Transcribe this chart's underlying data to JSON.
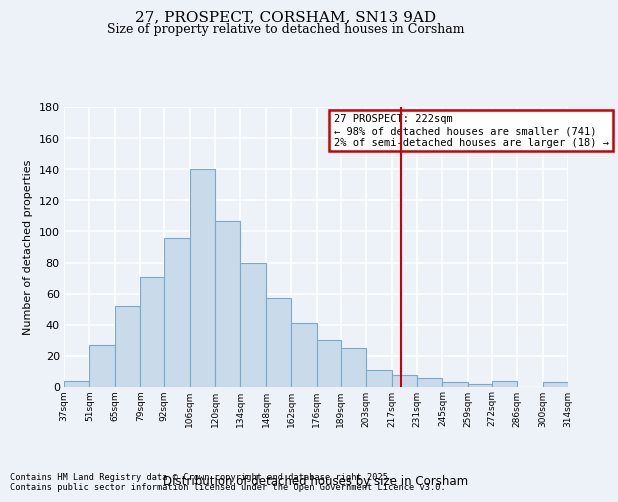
{
  "title": "27, PROSPECT, CORSHAM, SN13 9AD",
  "subtitle": "Size of property relative to detached houses in Corsham",
  "xlabel": "Distribution of detached houses by size in Corsham",
  "ylabel": "Number of detached properties",
  "footer_line1": "Contains HM Land Registry data © Crown copyright and database right 2025.",
  "footer_line2": "Contains public sector information licensed under the Open Government Licence v3.0.",
  "bin_labels": [
    "37sqm",
    "51sqm",
    "65sqm",
    "79sqm",
    "92sqm",
    "106sqm",
    "120sqm",
    "134sqm",
    "148sqm",
    "162sqm",
    "176sqm",
    "189sqm",
    "203sqm",
    "217sqm",
    "231sqm",
    "245sqm",
    "259sqm",
    "272sqm",
    "286sqm",
    "300sqm",
    "314sqm"
  ],
  "bar_values": [
    4,
    27,
    52,
    71,
    96,
    140,
    107,
    80,
    57,
    41,
    30,
    25,
    11,
    8,
    6,
    3,
    2,
    4,
    0,
    3
  ],
  "bar_color": "#c9daea",
  "bar_edge_color": "#7aaaca",
  "background_color": "#edf1f8",
  "grid_color": "#ffffff",
  "vline_color": "#cc0000",
  "annotation_text": "27 PROSPECT: 222sqm\n← 98% of detached houses are smaller (741)\n2% of semi-detached houses are larger (18) →",
  "annotation_box_edgecolor": "#cc0000",
  "ylim": [
    0,
    180
  ],
  "yticks": [
    0,
    20,
    40,
    60,
    80,
    100,
    120,
    140,
    160,
    180
  ],
  "bin_edges": [
    37,
    51,
    65,
    79,
    92,
    106,
    120,
    134,
    148,
    162,
    176,
    189,
    203,
    217,
    231,
    245,
    259,
    272,
    286,
    300,
    314
  ],
  "vline_x": 222
}
